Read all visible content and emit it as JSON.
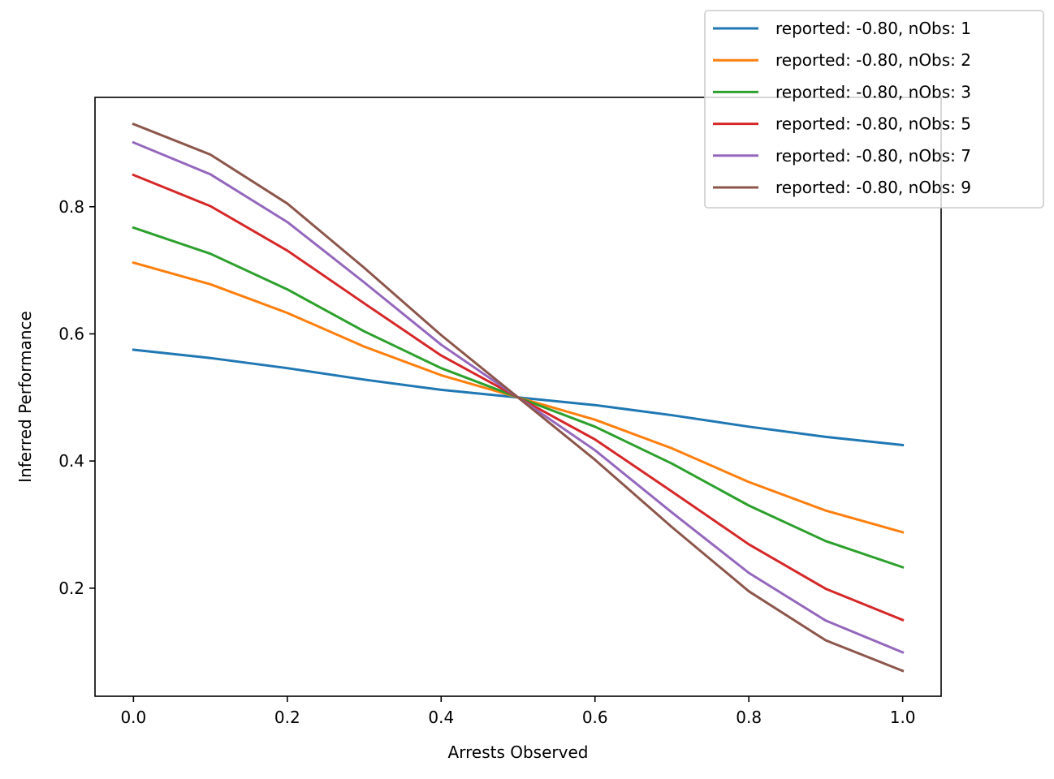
{
  "chart_data": {
    "type": "line",
    "title": "",
    "xlabel": "Arrests Observed",
    "ylabel": "Inferred Performance",
    "xlim": [
      -0.05,
      1.05
    ],
    "ylim": [
      0.03,
      0.972
    ],
    "xticks": [
      0.0,
      0.2,
      0.4,
      0.6,
      0.8,
      1.0
    ],
    "xtick_labels": [
      "0.0",
      "0.2",
      "0.4",
      "0.6",
      "0.8",
      "1.0"
    ],
    "yticks": [
      0.2,
      0.4,
      0.6,
      0.8
    ],
    "ytick_labels": [
      "0.2",
      "0.4",
      "0.6",
      "0.8"
    ],
    "grid": false,
    "legend_position": "top-right",
    "x": [
      0.0,
      0.1,
      0.2,
      0.3,
      0.4,
      0.5,
      0.6,
      0.7,
      0.8,
      0.9,
      1.0
    ],
    "series": [
      {
        "name": "reported: -0.80, nObs: 1",
        "color": "#1f77b4",
        "values": [
          0.575,
          0.562,
          0.546,
          0.528,
          0.512,
          0.5,
          0.488,
          0.472,
          0.454,
          0.438,
          0.425
        ]
      },
      {
        "name": "reported: -0.80, nObs: 2",
        "color": "#ff7f0e",
        "values": [
          0.712,
          0.678,
          0.633,
          0.58,
          0.535,
          0.5,
          0.465,
          0.42,
          0.367,
          0.322,
          0.288
        ]
      },
      {
        "name": "reported: -0.80, nObs: 3",
        "color": "#2ca02c",
        "values": [
          0.767,
          0.726,
          0.67,
          0.604,
          0.546,
          0.5,
          0.454,
          0.396,
          0.33,
          0.274,
          0.233
        ]
      },
      {
        "name": "reported: -0.80, nObs: 5",
        "color": "#d62728",
        "values": [
          0.85,
          0.801,
          0.731,
          0.648,
          0.566,
          0.5,
          0.434,
          0.352,
          0.269,
          0.199,
          0.15
        ]
      },
      {
        "name": "reported: -0.80, nObs: 7",
        "color": "#9467bd",
        "values": [
          0.901,
          0.851,
          0.776,
          0.681,
          0.583,
          0.5,
          0.417,
          0.319,
          0.224,
          0.149,
          0.099
        ]
      },
      {
        "name": "reported: -0.80, nObs: 9",
        "color": "#8c564b",
        "values": [
          0.93,
          0.882,
          0.805,
          0.704,
          0.598,
          0.5,
          0.402,
          0.296,
          0.195,
          0.118,
          0.07
        ]
      }
    ]
  }
}
